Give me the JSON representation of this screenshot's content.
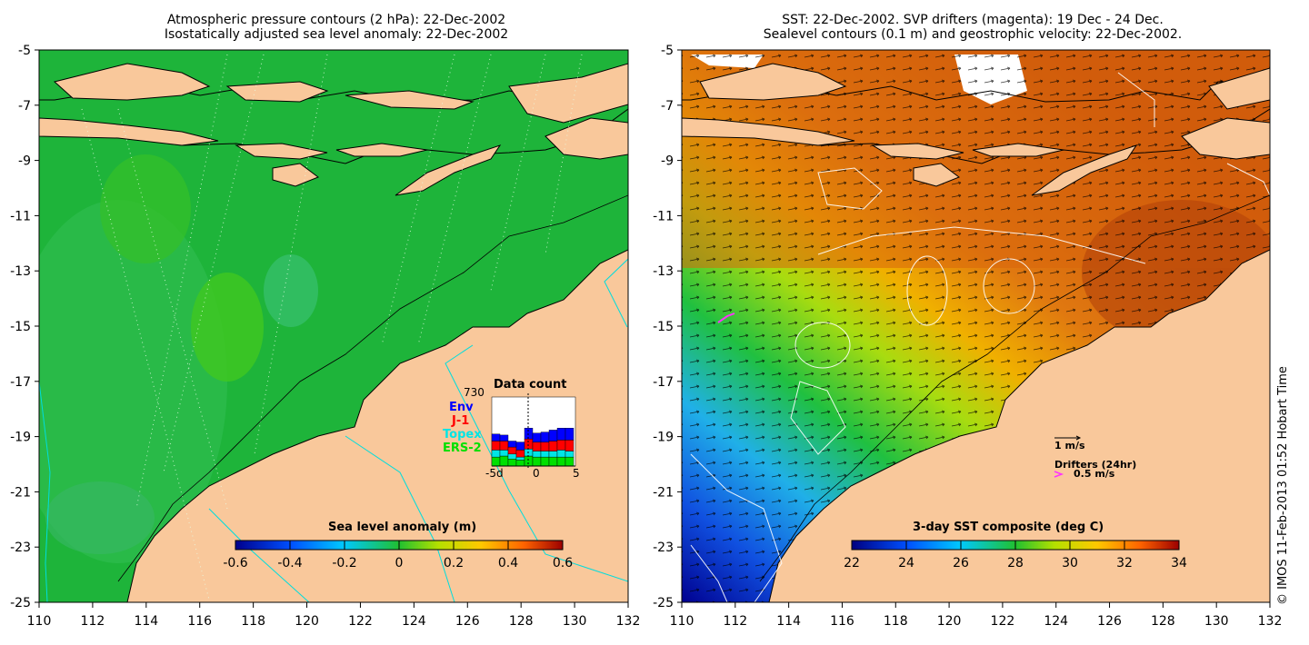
{
  "left_panel": {
    "title_line1": "Atmospheric pressure contours (2 hPa): 22-Dec-2002",
    "title_line2": "Isostatically adjusted sea level anomaly: 22-Dec-2002",
    "colorbar_label": "Sea level anomaly (m)",
    "colorbar_ticks": [
      "-0.6",
      "-0.4",
      "-0.2",
      "0",
      "0.2",
      "0.4",
      "0.6"
    ],
    "inset": {
      "title": "Data count",
      "count": "730",
      "sources": [
        {
          "name": "Env",
          "color": "#0000ff"
        },
        {
          "name": "J-1",
          "color": "#ff0000"
        },
        {
          "name": "Topex",
          "color": "#00e5e5"
        },
        {
          "name": "ERS-2",
          "color": "#00e000"
        }
      ],
      "x_ticks": [
        "-5d",
        "0",
        "5"
      ]
    }
  },
  "right_panel": {
    "title_line1": "SST: 22-Dec-2002. SVP drifters (magenta): 19 Dec - 24 Dec.",
    "title_line2": "Sealevel contours (0.1 m) and geostrophic velocity: 22-Dec-2002.",
    "colorbar_label": "3-day SST composite (deg C)",
    "colorbar_ticks": [
      "22",
      "24",
      "26",
      "28",
      "30",
      "32",
      "34"
    ],
    "velocity_scale_label": "1 m/s",
    "drifters_label": "Drifters (24hr)",
    "drifter_speed_label": "0.5 m/s"
  },
  "axes": {
    "lon_ticks": [
      "110",
      "112",
      "114",
      "116",
      "118",
      "120",
      "122",
      "124",
      "126",
      "128",
      "130",
      "132"
    ],
    "lat_ticks": [
      "-5",
      "-7",
      "-9",
      "-11",
      "-13",
      "-15",
      "-17",
      "-19",
      "-21",
      "-23",
      "-25"
    ]
  },
  "colors": {
    "land": "#f9c89b",
    "sea_anomaly": "#1fb33c",
    "sea_sst_warm": "#d2600e"
  },
  "credit": "© IMOS 11-Feb-2013 01:52 Hobart Time"
}
